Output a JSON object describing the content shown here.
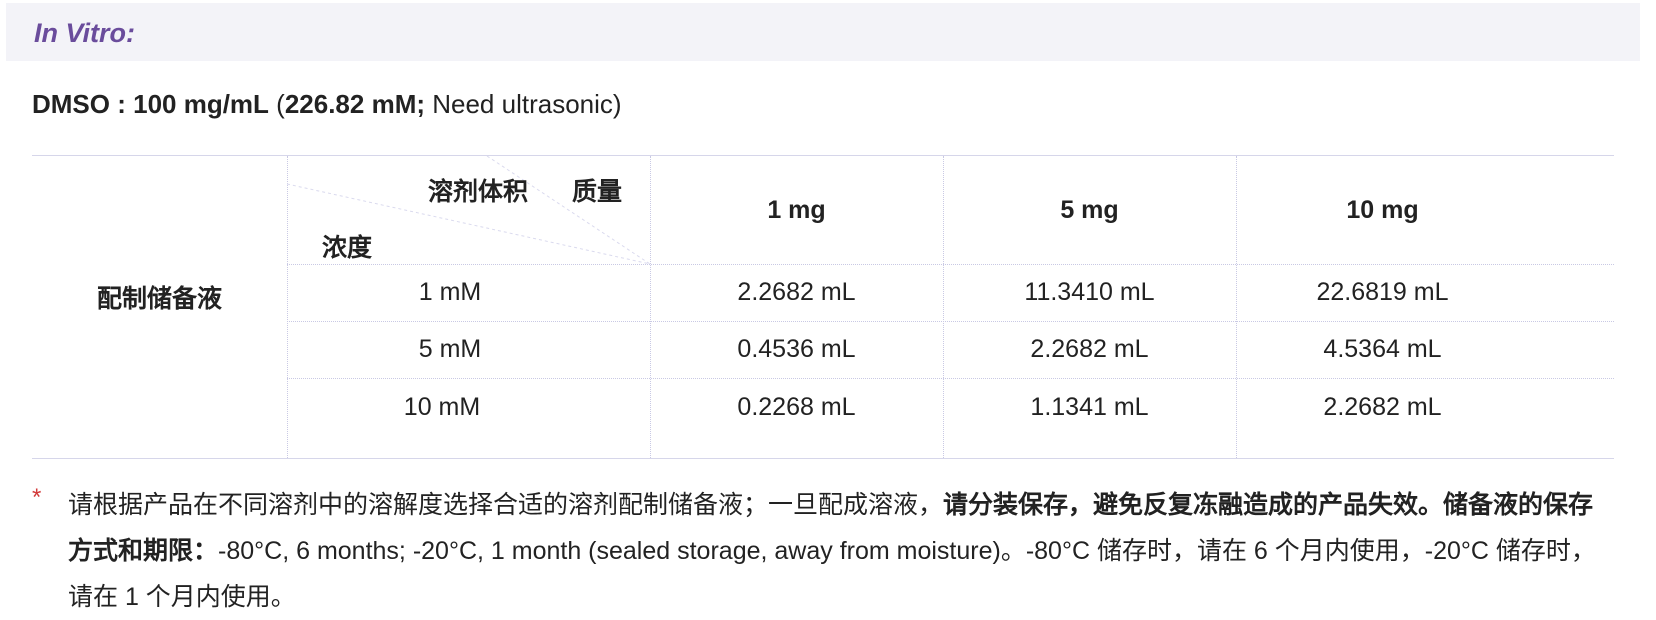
{
  "section": {
    "title": "In Vitro:"
  },
  "solubility": {
    "solvent": "DMSO",
    "separator": " : ",
    "concentration": "100 mg/mL",
    "open_paren": " (",
    "molarity": "226.82 mM;",
    "note": " Need ultrasonic)"
  },
  "stock_table": {
    "row_label": "配制储备液",
    "corner": {
      "volume_label": "溶剂体积",
      "mass_label": "质量",
      "concentration_label": "浓度"
    },
    "mass_headers": [
      "1 mg",
      "5 mg",
      "10 mg"
    ],
    "rows": [
      {
        "concentration": "1 mM",
        "values": [
          "2.2682 mL",
          "11.3410 mL",
          "22.6819 mL"
        ]
      },
      {
        "concentration": "5 mM",
        "values": [
          "0.4536 mL",
          "2.2682 mL",
          "4.5364 mL"
        ]
      },
      {
        "concentration": "10 mM",
        "values": [
          "0.2268 mL",
          "1.1341 mL",
          "2.2682 mL"
        ]
      }
    ]
  },
  "storage_note": {
    "star": "*",
    "text_plain_1": "请根据产品在不同溶剂中的溶解度选择合适的溶剂配制储备液；一旦配成溶液，",
    "text_bold_1": "请分装保存，避免反复冻融造成的产品失效。",
    "text_bold_2": "储备液的保存方式和期限：",
    "text_plain_2": "-80°C, 6 months; -20°C, 1 month (sealed storage, away from moisture)。-80°C 储存时，请在 6 个月内使用，-20°C 储存时，请在 1 个月内使用。"
  },
  "colors": {
    "section_bar_bg": "#f3f3f8",
    "section_title": "#6a4c9c",
    "grid_line": "#c9c9e4",
    "star": "#d23a3a"
  }
}
